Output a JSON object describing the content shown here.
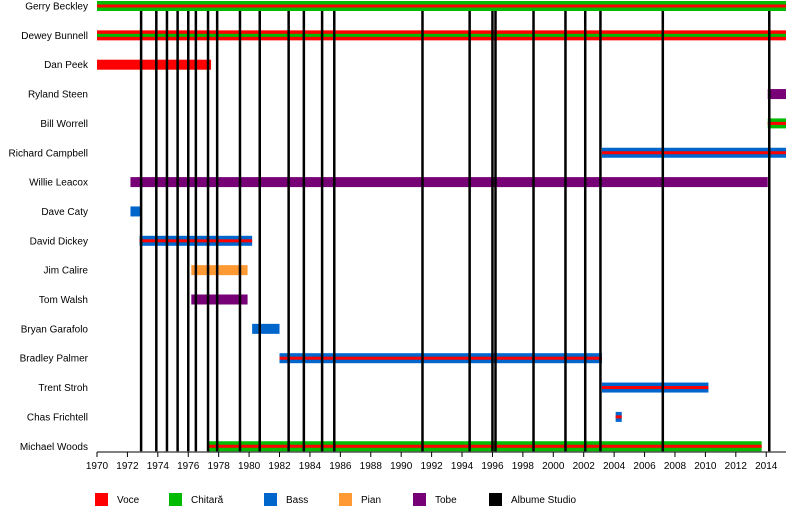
{
  "chart_data": {
    "type": "timeline",
    "title": "",
    "x_range": [
      1970,
      2015.3
    ],
    "x_ticks": [
      1970,
      1972,
      1974,
      1976,
      1978,
      1980,
      1982,
      1984,
      1986,
      1988,
      1990,
      1992,
      1994,
      1996,
      1998,
      2000,
      2002,
      2004,
      2006,
      2008,
      2010,
      2012,
      2014
    ],
    "roles": {
      "voce": {
        "label": "Voce",
        "color": "#ff0000"
      },
      "chitara": {
        "label": "Chitară",
        "color": "#00bb00"
      },
      "bass": {
        "label": "Bass",
        "color": "#0066cc"
      },
      "pian": {
        "label": "Pian",
        "color": "#ff9933"
      },
      "tobe": {
        "label": "Tobe",
        "color": "#770077"
      },
      "albume": {
        "label": "Albume Studio",
        "color": "#000000"
      }
    },
    "members": [
      {
        "name": "Gerry Beckley",
        "start": 1970,
        "end": 2015.3,
        "main": "chitara",
        "inner": "voce"
      },
      {
        "name": "Dewey Bunnell",
        "start": 1970,
        "end": 2015.3,
        "main": "voce",
        "inner": "chitara"
      },
      {
        "name": "Dan Peek",
        "start": 1970,
        "end": 1977.5,
        "main": "voce",
        "inner": null
      },
      {
        "name": "Ryland Steen",
        "start": 2014.1,
        "end": 2015.3,
        "main": "tobe",
        "inner": null
      },
      {
        "name": "Bill Worrell",
        "start": 2014.1,
        "end": 2015.3,
        "main": "chitara",
        "inner": "voce"
      },
      {
        "name": "Richard Campbell",
        "start": 2003.2,
        "end": 2015.3,
        "main": "bass",
        "inner": "voce"
      },
      {
        "name": "Willie Leacox",
        "start": 1972.2,
        "end": 2014.1,
        "main": "tobe",
        "inner": null
      },
      {
        "name": "Dave Caty",
        "start": 1972.2,
        "end": 1972.9,
        "main": "bass",
        "inner": null
      },
      {
        "name": "David Dickey",
        "start": 1972.8,
        "end": 1980.2,
        "main": "bass",
        "inner": "voce"
      },
      {
        "name": "Jim Calire",
        "start": 1976.2,
        "end": 1979.9,
        "main": "pian",
        "inner": null
      },
      {
        "name": "Tom Walsh",
        "start": 1976.2,
        "end": 1979.9,
        "main": "tobe",
        "inner": null
      },
      {
        "name": "Bryan Garafolo",
        "start": 1980.2,
        "end": 1982.0,
        "main": "bass",
        "inner": null
      },
      {
        "name": "Bradley Palmer",
        "start": 1982.0,
        "end": 2003.2,
        "main": "bass",
        "inner": "voce"
      },
      {
        "name": "Trent Stroh",
        "start": 2003.2,
        "end": 2010.2,
        "main": "bass",
        "inner": "voce"
      },
      {
        "name": "Chas Frichtell",
        "start": 2004.1,
        "end": 2004.5,
        "main": "bass",
        "inner": "voce"
      },
      {
        "name": "Michael Woods",
        "start": 1977.3,
        "end": 2013.7,
        "main": "chitara",
        "inner": "voce"
      }
    ],
    "albums": [
      1972.9,
      1973.9,
      1974.6,
      1975.3,
      1976.0,
      1976.5,
      1977.3,
      1977.9,
      1979.4,
      1980.7,
      1982.6,
      1983.6,
      1984.8,
      1985.6,
      1991.4,
      1994.5,
      1996.0,
      1996.2,
      1998.7,
      2000.8,
      2002.1,
      2003.1,
      2007.2,
      2014.2
    ]
  }
}
